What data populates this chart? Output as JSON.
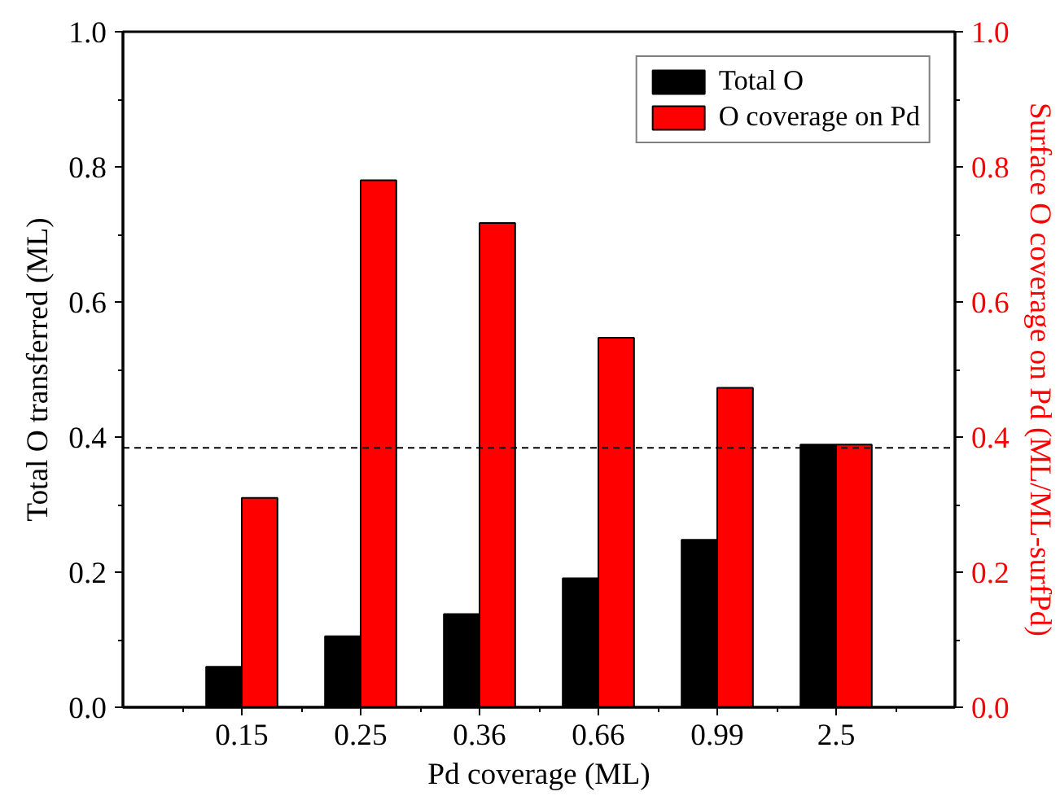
{
  "chart_data": {
    "type": "bar",
    "xlabel": "Pd coverage (ML)",
    "ylabel": "Total O transferred (ML)",
    "y2label": "Surface O coverage on Pd (ML/ML-surfPd)",
    "categories": [
      "0.15",
      "0.25",
      "0.36",
      "0.66",
      "0.99",
      "2.5"
    ],
    "series": [
      {
        "name": "Total O",
        "color": "#000000",
        "values": [
          0.06,
          0.105,
          0.138,
          0.191,
          0.248,
          0.389
        ]
      },
      {
        "name": "O coverage on Pd",
        "color": "#ff0000",
        "axis": "y2",
        "values": [
          0.31,
          0.78,
          0.717,
          0.547,
          0.473,
          0.389
        ]
      }
    ],
    "ylim": [
      0,
      1
    ],
    "yticks": [
      {
        "value": 0,
        "label": "0.0"
      },
      0.2,
      0.4,
      0.6,
      0.8,
      {
        "value": 1,
        "label": "1.0"
      }
    ],
    "y2lim": [
      0,
      1
    ],
    "y2ticks": [
      {
        "value": 0,
        "label": "0.0"
      },
      0.2,
      0.4,
      0.6,
      0.8,
      {
        "value": 1,
        "label": "1.0"
      }
    ],
    "ref_lines": [
      {
        "axis": "y",
        "value": 0.384,
        "color": "#000000",
        "line_style": "dashed"
      }
    ],
    "legend": "top right",
    "grid": false
  }
}
